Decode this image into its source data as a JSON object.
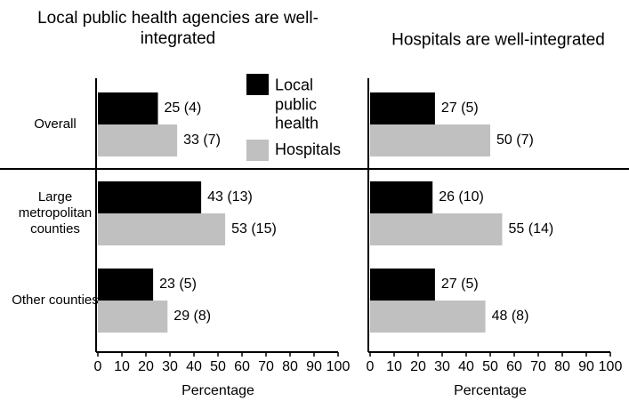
{
  "chart_data": [
    {
      "type": "bar",
      "orientation": "horizontal",
      "title": "Local public health agencies are well-integrated",
      "categories": [
        "Overall",
        "Large metropolitan counties",
        "Other counties"
      ],
      "series": [
        {
          "name": "Local public health",
          "color": "#000000",
          "values": [
            25,
            43,
            23
          ],
          "value_labels": [
            "25 (4)",
            "43 (13)",
            "23 (5)"
          ]
        },
        {
          "name": "Hospitals",
          "color": "#c0c0c0",
          "values": [
            33,
            53,
            29
          ],
          "value_labels": [
            "33 (7)",
            "53 (15)",
            "29 (8)"
          ]
        }
      ],
      "xlabel": "Percentage",
      "xlim": [
        0,
        100
      ],
      "xticks": [
        0,
        10,
        20,
        30,
        40,
        50,
        60,
        70,
        80,
        90,
        100
      ],
      "grid": false
    },
    {
      "type": "bar",
      "orientation": "horizontal",
      "title": "Hospitals are well-integrated",
      "series": [
        {
          "color": "#000000",
          "values": [
            27,
            26,
            27
          ],
          "value_labels": [
            "27 (5)",
            "26 (10)",
            "27 (5)"
          ]
        },
        {
          "color": "#c0c0c0",
          "values": [
            50,
            55,
            48
          ],
          "value_labels": [
            "50 (7)",
            "55 (14)",
            "48 (8)"
          ]
        }
      ],
      "xlabel": "Percentage",
      "xlim": [
        0,
        100
      ],
      "xticks": [
        0,
        10,
        20,
        30,
        40,
        50,
        60,
        70,
        80,
        90,
        100
      ],
      "grid": false
    }
  ]
}
